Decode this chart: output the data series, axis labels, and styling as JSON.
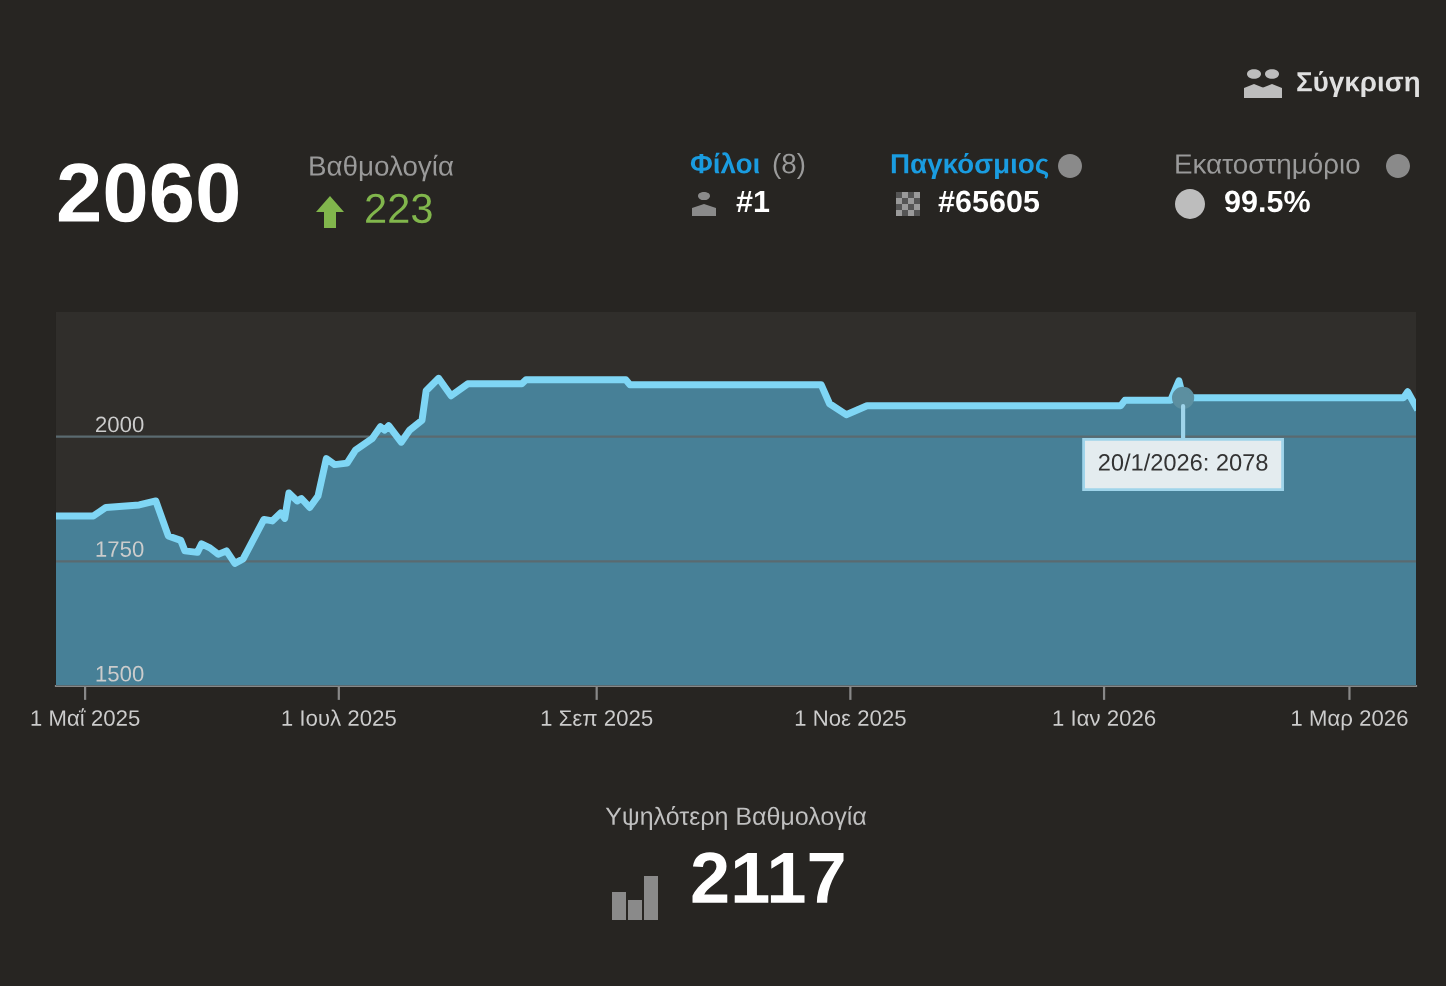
{
  "chart_data": {
    "type": "area",
    "x": [
      "2025-04-24",
      "2025-05-03",
      "2025-05-06",
      "2025-05-14",
      "2025-05-18",
      "2025-05-21",
      "2025-05-24",
      "2025-05-25",
      "2025-05-28",
      "2025-05-29",
      "2025-05-31",
      "2025-06-02",
      "2025-06-04",
      "2025-06-06",
      "2025-06-08",
      "2025-06-13",
      "2025-06-15",
      "2025-06-17",
      "2025-06-18",
      "2025-06-19",
      "2025-06-21",
      "2025-06-22",
      "2025-06-24",
      "2025-06-26",
      "2025-06-28",
      "2025-06-30",
      "2025-07-03",
      "2025-07-05",
      "2025-07-09",
      "2025-07-11",
      "2025-07-12",
      "2025-07-13",
      "2025-07-16",
      "2025-07-18",
      "2025-07-21",
      "2025-07-22",
      "2025-07-25",
      "2025-07-28",
      "2025-08-01",
      "2025-08-14",
      "2025-08-15",
      "2025-09-08",
      "2025-09-09",
      "2025-10-25",
      "2025-10-27",
      "2025-10-31",
      "2025-11-05",
      "2026-01-05",
      "2026-01-06",
      "2026-01-17",
      "2026-01-19",
      "2026-01-20",
      "2026-03-14",
      "2026-03-15",
      "2026-03-17"
    ],
    "series": [
      {
        "color": "#7fd6f5",
        "values": [
          1841,
          1841,
          1858,
          1863,
          1871,
          1801,
          1792,
          1771,
          1768,
          1785,
          1777,
          1764,
          1771,
          1746,
          1755,
          1834,
          1831,
          1847,
          1836,
          1887,
          1871,
          1876,
          1858,
          1881,
          1956,
          1944,
          1947,
          1973,
          1996,
          2020,
          2013,
          2022,
          1989,
          2013,
          2033,
          2092,
          2117,
          2082,
          2106,
          2106,
          2114,
          2114,
          2104,
          2104,
          2066,
          2044,
          2062,
          2062,
          2073,
          2073,
          2112,
          2078,
          2078,
          2090,
          2060
        ]
      }
    ],
    "xlim": [
      "2025-04-24",
      "2026-03-17"
    ],
    "xticks": [
      {
        "value": "2025-05-01",
        "label": "1 Μαΐ 2025"
      },
      {
        "value": "2025-07-01",
        "label": "1 Ιουλ 2025"
      },
      {
        "value": "2025-09-01",
        "label": "1 Σεπ 2025"
      },
      {
        "value": "2025-11-01",
        "label": "1 Νοε 2025"
      },
      {
        "value": "2026-01-01",
        "label": "1 Ιαν 2026"
      },
      {
        "value": "2026-03-01",
        "label": "1 Μαρ 2026"
      }
    ],
    "ylim": [
      1500,
      2250
    ],
    "yticks": [
      1500,
      1750,
      2000
    ],
    "grid": "y",
    "annotations": [
      "Σύγκριση",
      "2060",
      "Βαθμολογία",
      "223",
      "Φίλοι",
      "(8)",
      "#1",
      "Παγκόσμιος",
      "#65605",
      "Εκατοστημόριο",
      "99.5%",
      "Υψηλότερη Βαθμολογία",
      "2117",
      {
        "text": "20/1/2026: 2078",
        "x": "2026-01-20",
        "y": 2078
      }
    ]
  }
}
